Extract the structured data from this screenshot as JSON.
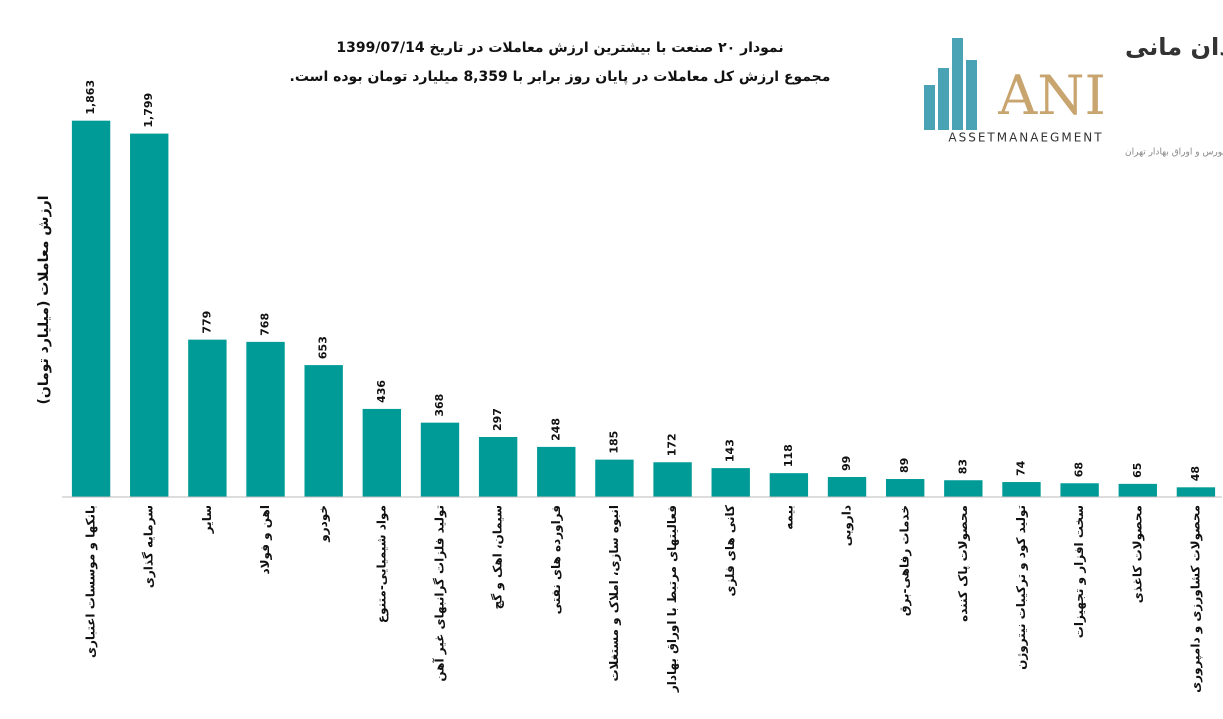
{
  "chart_data": {
    "type": "bar",
    "title": "نمودار ۲۰ صنعت با بیشترین ارزش معاملات در تاریخ 1399/07/14",
    "subtitle": "مجموع ارزش کل معاملات در پایان روز برابر با 8,359 میلیارد تومان بوده است.",
    "y_label": "ارزش معاملات (میلیارد تومان)",
    "categories": [
      "بانکها و موسسات اعتباری",
      "سرمایه گذاری",
      "سایر",
      "اهن و فولاد",
      "خودرو",
      "مواد شیمیایی-متنوع",
      "تولید فلزات گرانبهای غیر آهن",
      "سیمان، اهک و گچ",
      "فراورده های نفتی",
      "انبوه سازی، املاک و مستغلات",
      "فعالیتهای مرتبط با اوراق بهادار",
      "کانی های فلزی",
      "بیمه",
      "دارویی",
      "خدمات رفاهی-برق",
      "محصولات پاک کننده",
      "تولید کود و ترکیبات نیتروژن",
      "سخت افزار و تجهیزات",
      "محصولات کاغذی",
      "محصولات کشاورزی و دامپروری"
    ],
    "values": [
      1863,
      1799,
      779,
      768,
      653,
      436,
      368,
      297,
      248,
      185,
      172,
      143,
      118,
      99,
      89,
      83,
      74,
      68,
      65,
      48
    ],
    "value_labels": [
      "1,863",
      "1,799",
      "779",
      "768",
      "653",
      "436",
      "368",
      "297",
      "248",
      "185",
      "172",
      "143",
      "118",
      "99",
      "89",
      "83",
      "74",
      "68",
      "65",
      "48"
    ],
    "color": "#009b96",
    "ylim": [
      0,
      2000
    ]
  },
  "logo": {
    "name_fa": "سبدگردان مانی",
    "mark": "ANI",
    "tagline": "ASSETMANAEGMENT",
    "supervision": "تحت نظارت سازمان بورس و اوراق بهادار تهران"
  }
}
